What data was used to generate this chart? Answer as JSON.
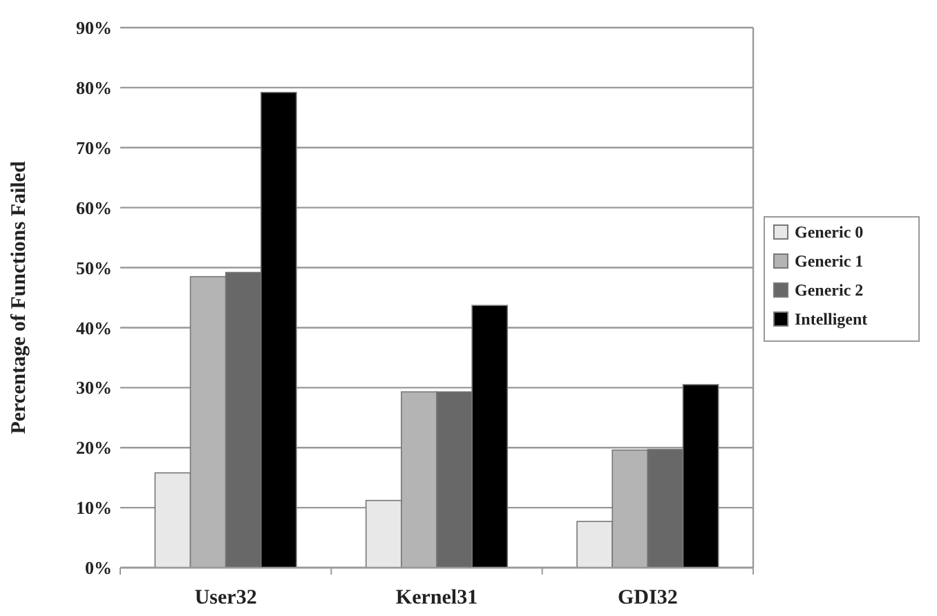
{
  "chart_data": {
    "type": "bar",
    "ylabel": "Percentage of Functions Failed",
    "categories": [
      "User32",
      "Kernel31",
      "GDI32"
    ],
    "series": [
      {
        "name": "Generic 0",
        "color": "#e8e8e8",
        "values": [
          15.8,
          11.2,
          7.7
        ]
      },
      {
        "name": "Generic 1",
        "color": "#b4b4b4",
        "values": [
          48.5,
          29.3,
          19.6
        ]
      },
      {
        "name": "Generic 2",
        "color": "#686868",
        "values": [
          49.2,
          29.3,
          19.7
        ]
      },
      {
        "name": "Intelligent",
        "color": "#000000",
        "values": [
          79.2,
          43.7,
          30.5
        ]
      }
    ],
    "ylim": [
      0,
      90
    ],
    "yticks": [
      {
        "value": 0,
        "label": "0%"
      },
      {
        "value": 10,
        "label": "10%"
      },
      {
        "value": 20,
        "label": "20%"
      },
      {
        "value": 30,
        "label": "30%"
      },
      {
        "value": 40,
        "label": "40%"
      },
      {
        "value": 50,
        "label": "50%"
      },
      {
        "value": 60,
        "label": "60%"
      },
      {
        "value": 70,
        "label": "70%"
      },
      {
        "value": 80,
        "label": "80%"
      },
      {
        "value": 90,
        "label": "90%"
      }
    ],
    "grid": "y",
    "legend": "right"
  }
}
